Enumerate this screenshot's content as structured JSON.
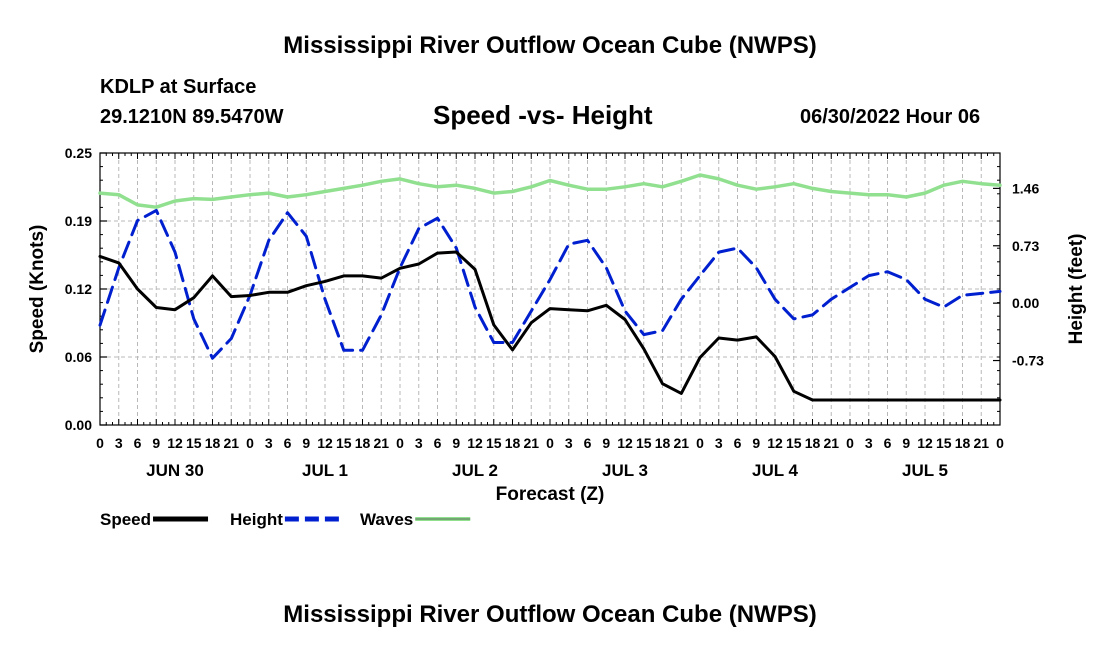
{
  "page": {
    "title": "Mississippi River Outflow Ocean Cube (NWPS)",
    "station": "KDLP at Surface",
    "coords": "29.1210N  89.5470W",
    "subtitle": "Speed -vs- Height",
    "datetime": "06/30/2022 Hour 06",
    "footer_title": "Mississippi River Outflow Ocean Cube (NWPS)"
  },
  "chart_data": {
    "type": "line",
    "title": "Speed -vs- Height",
    "xlabel": "Forecast (Z)",
    "ylabel": "Speed (Knots)",
    "y2label": "Height (feet)",
    "xlim": [
      0,
      144
    ],
    "ylim": [
      0,
      0.25
    ],
    "y2lim": [
      -1.55,
      1.91
    ],
    "x_tick_labels": [
      "0",
      "3",
      "6",
      "9",
      "12",
      "15",
      "18",
      "21",
      "0",
      "3",
      "6",
      "9",
      "12",
      "15",
      "18",
      "21",
      "0",
      "3",
      "6",
      "9",
      "12",
      "15",
      "18",
      "21",
      "0",
      "3",
      "6",
      "9",
      "12",
      "15",
      "18",
      "21",
      "0",
      "3",
      "6",
      "9",
      "12",
      "15",
      "18",
      "21",
      "0",
      "3",
      "6",
      "9",
      "12",
      "15",
      "18",
      "21",
      "0"
    ],
    "day_labels": [
      "JUN 30",
      "JUL 1",
      "JUL 2",
      "JUL 3",
      "JUL 4",
      "JUL 5"
    ],
    "y_ticks": [
      "0.00",
      "0.06",
      "0.12",
      "0.19",
      "0.25"
    ],
    "y_tick_values": [
      0,
      0.0625,
      0.125,
      0.1875,
      0.25
    ],
    "y2_ticks": [
      "-0.73",
      "0.00",
      "0.73",
      "1.46"
    ],
    "y2_tick_values": [
      -0.73,
      0.0,
      0.73,
      1.46
    ],
    "grid": true,
    "legend": [
      "Speed",
      "Height",
      "Waves"
    ],
    "series": [
      {
        "name": "Speed",
        "axis": "left",
        "color": "#000000",
        "style": "solid",
        "points": [
          [
            0,
            0.155
          ],
          [
            3,
            0.149
          ],
          [
            6,
            0.125
          ],
          [
            9,
            0.108
          ],
          [
            12,
            0.106
          ],
          [
            15,
            0.117
          ],
          [
            18,
            0.137
          ],
          [
            21,
            0.118
          ],
          [
            24,
            0.119
          ],
          [
            27,
            0.122
          ],
          [
            30,
            0.122
          ],
          [
            33,
            0.128
          ],
          [
            36,
            0.132
          ],
          [
            39,
            0.137
          ],
          [
            42,
            0.137
          ],
          [
            45,
            0.135
          ],
          [
            48,
            0.144
          ],
          [
            51,
            0.148
          ],
          [
            54,
            0.158
          ],
          [
            57,
            0.159
          ],
          [
            60,
            0.143
          ],
          [
            63,
            0.092
          ],
          [
            66,
            0.069
          ],
          [
            69,
            0.094
          ],
          [
            72,
            0.107
          ],
          [
            75,
            0.106
          ],
          [
            78,
            0.105
          ],
          [
            81,
            0.11
          ],
          [
            84,
            0.097
          ],
          [
            87,
            0.07
          ],
          [
            90,
            0.038
          ],
          [
            93,
            0.029
          ],
          [
            96,
            0.062
          ],
          [
            99,
            0.08
          ],
          [
            102,
            0.078
          ],
          [
            105,
            0.081
          ],
          [
            108,
            0.063
          ],
          [
            111,
            0.031
          ],
          [
            114,
            0.023
          ],
          [
            120,
            0.023
          ],
          [
            130,
            0.023
          ],
          [
            144,
            0.023
          ]
        ]
      },
      {
        "name": "Height",
        "axis": "right",
        "color": "#0020d0",
        "style": "dashed",
        "points": [
          [
            0,
            -0.28
          ],
          [
            3,
            0.45
          ],
          [
            6,
            1.05
          ],
          [
            9,
            1.18
          ],
          [
            12,
            0.65
          ],
          [
            15,
            -0.2
          ],
          [
            18,
            -0.7
          ],
          [
            21,
            -0.45
          ],
          [
            24,
            0.1
          ],
          [
            27,
            0.8
          ],
          [
            30,
            1.15
          ],
          [
            33,
            0.85
          ],
          [
            36,
            0.05
          ],
          [
            39,
            -0.6
          ],
          [
            42,
            -0.6
          ],
          [
            45,
            -0.15
          ],
          [
            48,
            0.45
          ],
          [
            51,
            0.95
          ],
          [
            54,
            1.08
          ],
          [
            57,
            0.7
          ],
          [
            60,
            -0.05
          ],
          [
            63,
            -0.5
          ],
          [
            66,
            -0.5
          ],
          [
            69,
            -0.1
          ],
          [
            72,
            0.3
          ],
          [
            75,
            0.75
          ],
          [
            78,
            0.8
          ],
          [
            81,
            0.45
          ],
          [
            84,
            -0.1
          ],
          [
            87,
            -0.4
          ],
          [
            90,
            -0.35
          ],
          [
            93,
            0.05
          ],
          [
            96,
            0.35
          ],
          [
            99,
            0.65
          ],
          [
            102,
            0.7
          ],
          [
            105,
            0.45
          ],
          [
            108,
            0.05
          ],
          [
            111,
            -0.2
          ],
          [
            114,
            -0.15
          ],
          [
            117,
            0.05
          ],
          [
            120,
            0.2
          ],
          [
            123,
            0.35
          ],
          [
            126,
            0.4
          ],
          [
            129,
            0.3
          ],
          [
            132,
            0.05
          ],
          [
            135,
            -0.05
          ],
          [
            138,
            0.1
          ],
          [
            144,
            0.15
          ]
        ]
      },
      {
        "name": "Waves",
        "axis": "right",
        "color": "#90e090",
        "style": "solid",
        "points": [
          [
            0,
            1.4
          ],
          [
            3,
            1.38
          ],
          [
            6,
            1.25
          ],
          [
            9,
            1.22
          ],
          [
            12,
            1.3
          ],
          [
            15,
            1.33
          ],
          [
            18,
            1.32
          ],
          [
            21,
            1.35
          ],
          [
            24,
            1.38
          ],
          [
            27,
            1.4
          ],
          [
            30,
            1.35
          ],
          [
            33,
            1.38
          ],
          [
            36,
            1.42
          ],
          [
            39,
            1.46
          ],
          [
            42,
            1.5
          ],
          [
            45,
            1.55
          ],
          [
            48,
            1.58
          ],
          [
            51,
            1.52
          ],
          [
            54,
            1.48
          ],
          [
            57,
            1.5
          ],
          [
            60,
            1.46
          ],
          [
            63,
            1.4
          ],
          [
            66,
            1.42
          ],
          [
            69,
            1.48
          ],
          [
            72,
            1.56
          ],
          [
            75,
            1.5
          ],
          [
            78,
            1.45
          ],
          [
            81,
            1.45
          ],
          [
            84,
            1.48
          ],
          [
            87,
            1.52
          ],
          [
            90,
            1.48
          ],
          [
            93,
            1.55
          ],
          [
            96,
            1.63
          ],
          [
            99,
            1.58
          ],
          [
            102,
            1.5
          ],
          [
            105,
            1.45
          ],
          [
            108,
            1.48
          ],
          [
            111,
            1.52
          ],
          [
            114,
            1.46
          ],
          [
            117,
            1.42
          ],
          [
            120,
            1.4
          ],
          [
            123,
            1.38
          ],
          [
            126,
            1.38
          ],
          [
            129,
            1.35
          ],
          [
            132,
            1.4
          ],
          [
            135,
            1.5
          ],
          [
            138,
            1.55
          ],
          [
            141,
            1.52
          ],
          [
            144,
            1.5
          ]
        ]
      }
    ]
  }
}
